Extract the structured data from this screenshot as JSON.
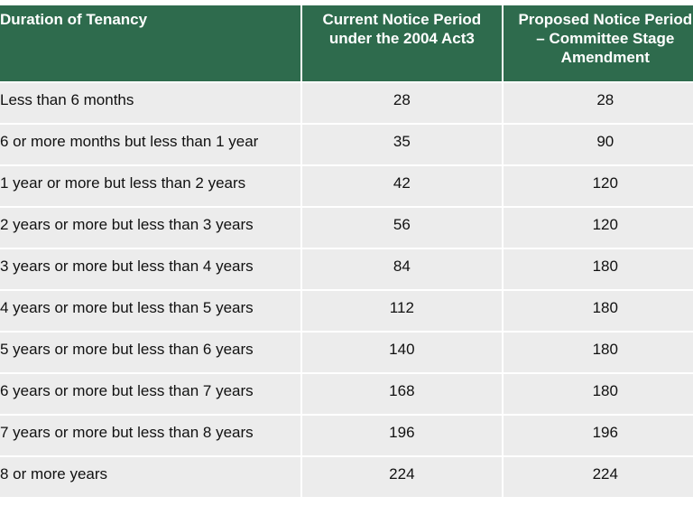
{
  "header": {
    "col1": "Duration of Tenancy",
    "col2_line1": "Current Notice Period",
    "col2_line2": "under the 2004 Act3",
    "col3_line1": "Proposed Notice Period",
    "col3_line2": "– Committee Stage",
    "col3_line3": "Amendment"
  },
  "rows": [
    {
      "duration": "Less than 6 months",
      "current": "28",
      "proposed": "28"
    },
    {
      "duration": "6 or more months but less than 1 year",
      "current": "35",
      "proposed": "90"
    },
    {
      "duration": "1 year or more but less than 2 years",
      "current": "42",
      "proposed": "120"
    },
    {
      "duration": "2 years or more but less than 3 years",
      "current": "56",
      "proposed": "120"
    },
    {
      "duration": "3 years or more but less than 4 years",
      "current": "84",
      "proposed": "180"
    },
    {
      "duration": "4 years or more but less than 5 years",
      "current": "112",
      "proposed": "180"
    },
    {
      "duration": "5 years or more but less than 6 years",
      "current": "140",
      "proposed": "180"
    },
    {
      "duration": "6 years or more but less than 7 years",
      "current": "168",
      "proposed": "180"
    },
    {
      "duration": "7 years or more but less than 8 years",
      "current": "196",
      "proposed": "196"
    },
    {
      "duration": "8 or more years",
      "current": "224",
      "proposed": "224"
    }
  ]
}
